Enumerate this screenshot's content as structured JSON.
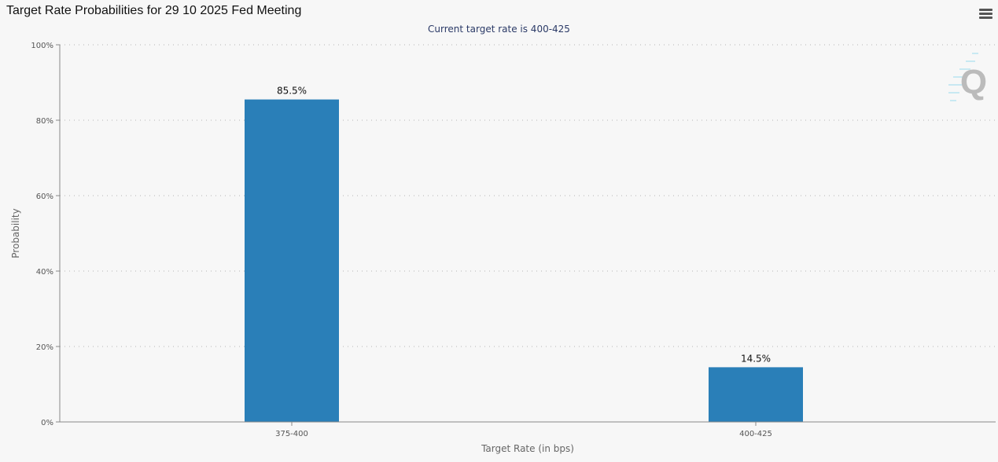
{
  "chart_data": {
    "type": "bar",
    "title": "Target Rate Probabilities for 29 10 2025 Fed Meeting",
    "subtitle": "Current target rate is 400-425",
    "xlabel": "Target Rate (in bps)",
    "ylabel": "Probability",
    "categories": [
      "375-400",
      "400-425"
    ],
    "values": [
      85.5,
      14.5
    ],
    "data_labels": [
      "85.5%",
      "14.5%"
    ],
    "ylim": [
      0,
      100
    ],
    "yticks": [
      0,
      20,
      40,
      60,
      80,
      100
    ],
    "ytick_labels": [
      "0%",
      "20%",
      "40%",
      "60%",
      "80%",
      "100%"
    ],
    "grid": true,
    "bar_color": "#2a7fb8"
  },
  "toolbar": {
    "menu_icon": "hamburger-menu-icon"
  },
  "watermark": {
    "logo_text": "Q"
  }
}
